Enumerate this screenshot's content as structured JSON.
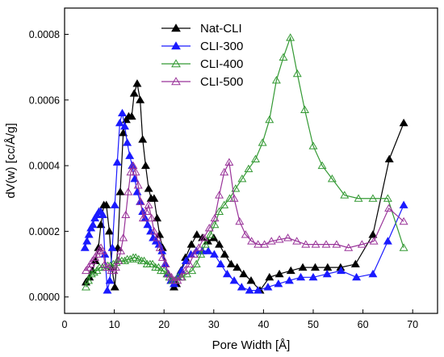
{
  "chart_data": {
    "type": "line",
    "xlabel": "Pore Width [Å]",
    "ylabel": "dV(w) [cc/Å/g]",
    "xlim": [
      0,
      75
    ],
    "ylim": [
      -5e-05,
      0.00088
    ],
    "x_ticks": [
      0,
      10,
      20,
      30,
      40,
      50,
      60,
      70
    ],
    "y_ticks": [
      0.0,
      0.0002,
      0.0004,
      0.0006,
      0.0008
    ],
    "x_tick_labels": [
      "0",
      "10",
      "20",
      "30",
      "40",
      "50",
      "60",
      "70"
    ],
    "y_tick_labels": [
      "0.0000",
      "0.0002",
      "0.0004",
      "0.0006",
      "0.0008"
    ],
    "grid": false,
    "legend_position": "top-center",
    "series": [
      {
        "name": "Nat-CLI",
        "color": "#000000",
        "marker": "filled-triangle",
        "x": [
          4.3,
          5.0,
          5.6,
          6.2,
          6.8,
          7.3,
          7.9,
          8.4,
          9.0,
          9.5,
          10.1,
          10.7,
          11.2,
          11.8,
          12.4,
          12.9,
          13.5,
          14.0,
          14.6,
          15.2,
          15.7,
          16.3,
          16.9,
          17.4,
          18.0,
          18.6,
          19.1,
          19.7,
          20.3,
          20.8,
          21.4,
          22.0,
          22.5,
          23.4,
          24.3,
          25.5,
          26.6,
          27.7,
          28.8,
          30.0,
          31.1,
          32.2,
          33.5,
          34.7,
          36.0,
          37.5,
          39.3,
          41.2,
          43.2,
          45.5,
          47.9,
          50.4,
          52.9,
          55.5,
          58.5,
          62.0,
          65.3,
          68.2
        ],
        "y": [
          4.5e-05,
          6e-05,
          8e-05,
          0.00011,
          0.00015,
          0.00022,
          0.00028,
          0.00028,
          0.0002,
          9e-05,
          3e-05,
          0.00015,
          0.00032,
          0.0005,
          0.00054,
          0.00055,
          0.00055,
          0.00062,
          0.00065,
          0.0006,
          0.00048,
          0.0004,
          0.00033,
          0.0003,
          0.0003,
          0.00024,
          0.00019,
          0.00015,
          0.0001,
          7e-05,
          5e-05,
          3e-05,
          4e-05,
          8e-05,
          0.00012,
          0.00016,
          0.00019,
          0.00018,
          0.00017,
          0.00018,
          0.00016,
          0.00013,
          0.0001,
          9e-05,
          7e-05,
          5e-05,
          2e-05,
          6e-05,
          7e-05,
          8e-05,
          9e-05,
          9e-05,
          9e-05,
          9e-05,
          0.0001,
          0.00019,
          0.00042,
          0.00053
        ]
      },
      {
        "name": "CLI-300",
        "color": "#1a1aff",
        "marker": "filled-triangle",
        "x": [
          4.1,
          4.5,
          4.9,
          5.3,
          5.7,
          6.1,
          6.5,
          6.9,
          7.3,
          7.7,
          8.1,
          8.6,
          9.1,
          9.6,
          10.1,
          10.6,
          11.1,
          11.6,
          12.1,
          12.6,
          13.1,
          13.6,
          14.1,
          14.6,
          15.2,
          15.7,
          16.2,
          16.7,
          17.3,
          17.8,
          18.4,
          19.0,
          19.6,
          20.2,
          20.8,
          21.4,
          22.0,
          22.7,
          23.5,
          24.4,
          25.4,
          26.5,
          27.7,
          28.9,
          30.1,
          31.4,
          32.7,
          34.1,
          35.6,
          37.2,
          38.9,
          40.9,
          43.0,
          45.2,
          47.5,
          50.0,
          52.8,
          55.6,
          58.7,
          62.0,
          65.0,
          68.2
        ],
        "y": [
          0.00015,
          0.00017,
          0.00019,
          0.00021,
          0.00022,
          0.00024,
          0.00025,
          0.00026,
          0.00026,
          0.00025,
          0.00013,
          2e-05,
          5e-05,
          0.00015,
          0.00028,
          0.00041,
          0.00053,
          0.00056,
          0.00052,
          0.00047,
          0.00043,
          0.0004,
          0.00036,
          0.00032,
          0.00029,
          0.00026,
          0.00024,
          0.00022,
          0.0002,
          0.00018,
          0.00017,
          0.00016,
          0.00014,
          0.0001,
          7e-05,
          5e-05,
          4e-05,
          6e-05,
          8e-05,
          0.00011,
          0.00013,
          0.00014,
          0.00014,
          0.00014,
          0.00013,
          0.0001,
          7e-05,
          5e-05,
          3e-05,
          2e-05,
          2e-05,
          3e-05,
          4e-05,
          5e-05,
          6e-05,
          6e-05,
          7e-05,
          8e-05,
          6e-05,
          7e-05,
          0.00017,
          0.00028
        ]
      },
      {
        "name": "CLI-400",
        "color": "#339933",
        "marker": "open-triangle",
        "x": [
          4.3,
          4.8,
          5.4,
          5.9,
          6.5,
          7.0,
          7.6,
          8.1,
          8.7,
          9.2,
          9.8,
          10.4,
          10.9,
          11.5,
          12.1,
          12.6,
          13.2,
          13.8,
          14.3,
          14.9,
          15.5,
          16.0,
          16.6,
          17.2,
          17.7,
          18.3,
          18.9,
          19.4,
          20.0,
          20.6,
          21.1,
          21.7,
          22.3,
          22.8,
          23.6,
          24.6,
          25.6,
          26.5,
          27.4,
          28.3,
          29.3,
          30.2,
          31.1,
          32.1,
          33.2,
          34.4,
          35.7,
          37.0,
          38.4,
          39.8,
          41.2,
          42.6,
          44.0,
          45.4,
          46.8,
          48.3,
          50.0,
          51.8,
          53.8,
          56.3,
          59.1,
          62.0,
          65.0,
          68.2
        ],
        "y": [
          3e-05,
          5e-05,
          7e-05,
          7.5e-05,
          8e-05,
          9e-05,
          9e-05,
          9e-05,
          9.5e-05,
          9.5e-05,
          0.0001,
          0.000105,
          0.00011,
          0.00011,
          0.00011,
          0.000115,
          0.000115,
          0.00012,
          0.00012,
          0.000115,
          0.00011,
          0.00011,
          0.0001,
          0.0001,
          0.0001,
          9e-05,
          9e-05,
          8e-05,
          8e-05,
          7e-05,
          6e-05,
          5e-05,
          5e-05,
          6e-05,
          6e-05,
          7e-05,
          8e-05,
          0.0001,
          0.00013,
          0.00016,
          0.00019,
          0.00022,
          0.00026,
          0.00028,
          0.0003,
          0.00033,
          0.00036,
          0.00039,
          0.00042,
          0.00047,
          0.00054,
          0.00066,
          0.00073,
          0.00079,
          0.00068,
          0.00057,
          0.00046,
          0.0004,
          0.00036,
          0.00031,
          0.0003,
          0.0003,
          0.0003,
          0.00015
        ]
      },
      {
        "name": "CLI-500",
        "color": "#993399",
        "marker": "open-triangle",
        "x": [
          4.3,
          4.8,
          5.2,
          5.6,
          6.1,
          6.5,
          6.9,
          7.3,
          7.7,
          8.1,
          8.5,
          9.0,
          9.4,
          9.9,
          10.3,
          10.8,
          11.3,
          11.8,
          12.3,
          12.8,
          13.3,
          13.8,
          14.3,
          14.8,
          15.3,
          15.8,
          16.4,
          16.9,
          17.5,
          18.0,
          18.6,
          19.2,
          19.7,
          20.3,
          20.9,
          21.5,
          22.1,
          22.7,
          23.4,
          24.2,
          25.1,
          26.0,
          27.0,
          28.0,
          29.1,
          30.2,
          31.1,
          32.1,
          33.1,
          34.1,
          35.2,
          36.4,
          37.6,
          38.9,
          40.2,
          41.6,
          43.2,
          44.9,
          46.7,
          48.5,
          50.5,
          52.6,
          54.7,
          57.1,
          59.8,
          62.2,
          65.2,
          68.2
        ],
        "y": [
          8e-05,
          9e-05,
          0.0001,
          0.00011,
          0.00012,
          0.00013,
          0.00014,
          0.00015,
          0.00014,
          0.0001,
          9e-05,
          9e-05,
          8e-05,
          8e-05,
          9e-05,
          0.00011,
          0.00014,
          0.00018,
          0.00025,
          0.00032,
          0.00038,
          0.0004,
          0.00038,
          0.00034,
          0.00029,
          0.00024,
          0.00026,
          0.00028,
          0.00024,
          0.0002,
          0.00018,
          0.00015,
          0.00012,
          0.0001,
          7e-05,
          6e-05,
          5e-05,
          5e-05,
          6e-05,
          8e-05,
          0.0001,
          0.00013,
          0.00015,
          0.00018,
          0.00021,
          0.00024,
          0.00031,
          0.00038,
          0.00041,
          0.0003,
          0.00023,
          0.00019,
          0.00017,
          0.00016,
          0.00016,
          0.00017,
          0.000175,
          0.00018,
          0.00017,
          0.00016,
          0.00016,
          0.00016,
          0.00016,
          0.00015,
          0.00016,
          0.00017,
          0.00027,
          0.00023
        ]
      }
    ]
  }
}
